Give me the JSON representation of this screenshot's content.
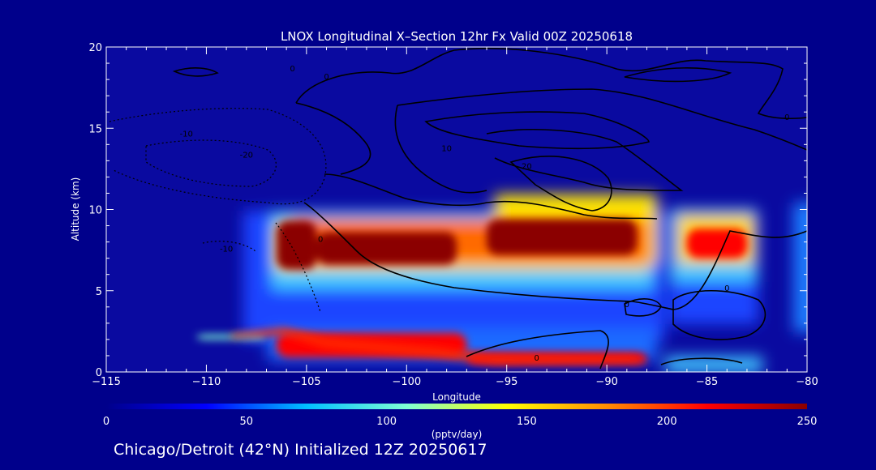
{
  "chart_data": {
    "type": "heatmap",
    "title": "LNOX Longitudinal X–Section 12hr  Fx Valid 00Z 20250618",
    "xlabel": "Longitude",
    "ylabel": "Altitude (km)",
    "xlim": [
      -115,
      -80
    ],
    "ylim": [
      0,
      20
    ],
    "x_ticks": [
      -115,
      -110,
      -105,
      -100,
      -95,
      -90,
      -85,
      -80
    ],
    "x_tick_labels": [
      "−115",
      "−110",
      "−105",
      "−100",
      "−95",
      "−90",
      "−85",
      "−80"
    ],
    "y_ticks": [
      0,
      5,
      10,
      15,
      20
    ],
    "y_tick_labels": [
      "0",
      "5",
      "10",
      "15",
      "20"
    ],
    "colorbar": {
      "label": "(pptv/day)",
      "min": 0,
      "max": 250,
      "ticks": [
        0,
        50,
        100,
        150,
        200,
        250
      ],
      "tick_labels": [
        "0",
        "50",
        "100",
        "150",
        "200",
        "250"
      ],
      "colors": [
        "#00008b",
        "#0000ff",
        "#00bfff",
        "#7fffd4",
        "#ffff00",
        "#ff8c00",
        "#ff0000",
        "#8b0000"
      ]
    },
    "cells": [
      {
        "lon": [
          -106.5,
          -104.5
        ],
        "alt": [
          6.3,
          9.3
        ],
        "value": 250
      },
      {
        "lon": [
          -104.5,
          -97.5
        ],
        "alt": [
          6.6,
          8.6
        ],
        "value": 240
      },
      {
        "lon": [
          -96.0,
          -88.5
        ],
        "alt": [
          7.2,
          9.4
        ],
        "value": 240
      },
      {
        "lon": [
          -86.0,
          -83.0
        ],
        "alt": [
          7.0,
          8.8
        ],
        "value": 210
      },
      {
        "lon": [
          -106.5,
          -97.0
        ],
        "alt": [
          0.9,
          2.4
        ],
        "value": 230
      },
      {
        "lon": [
          -97.0,
          -88.0
        ],
        "alt": [
          0.5,
          1.2
        ],
        "value": 230
      },
      {
        "lon": [
          -110.5,
          -107.0
        ],
        "alt": [
          2.0,
          2.3
        ],
        "value": 90
      }
    ],
    "contour_labels": [
      {
        "text": "0",
        "lon": -105.7,
        "alt": 18.5
      },
      {
        "text": "0",
        "lon": -104.0,
        "alt": 18.0
      },
      {
        "text": "0",
        "lon": -81.0,
        "alt": 15.5
      },
      {
        "text": "10",
        "lon": -98.0,
        "alt": 13.6
      },
      {
        "text": "20",
        "lon": -94.0,
        "alt": 12.5
      },
      {
        "text": "-10",
        "lon": -111.0,
        "alt": 14.5
      },
      {
        "text": "-20",
        "lon": -108.0,
        "alt": 13.2
      },
      {
        "text": "-10",
        "lon": -109.0,
        "alt": 7.4
      },
      {
        "text": "0",
        "lon": -104.3,
        "alt": 8.0
      },
      {
        "text": "0",
        "lon": -89.0,
        "alt": 4.0
      },
      {
        "text": "0",
        "lon": -84.0,
        "alt": 5.0
      },
      {
        "text": "0",
        "lon": -93.5,
        "alt": 0.7
      }
    ]
  },
  "footer": {
    "caption": "Chicago/Detroit (42°N) Initialized 12Z 20250617"
  },
  "colors": {
    "background": "#00008b",
    "text": "#ffffff",
    "contour": "#000000"
  }
}
